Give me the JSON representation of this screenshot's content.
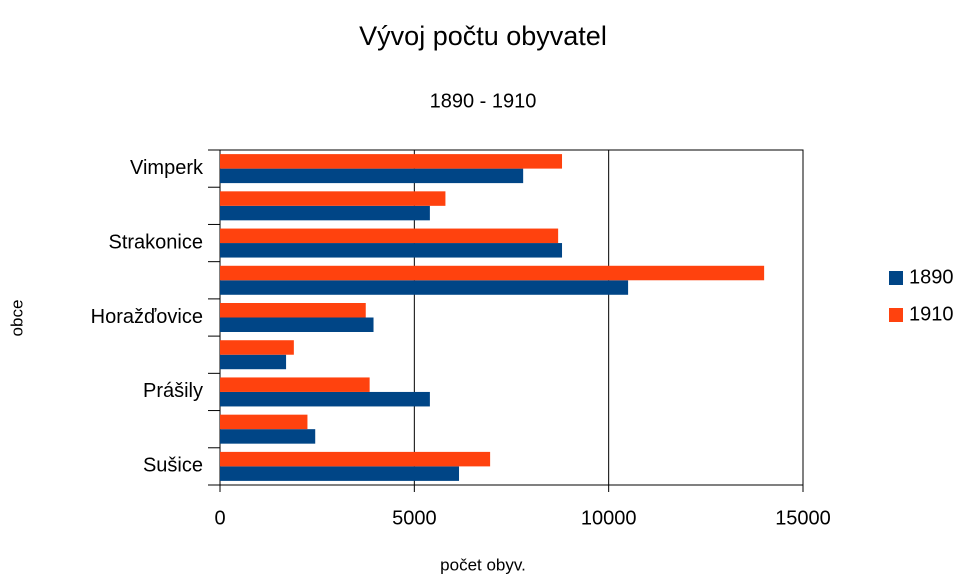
{
  "chart_data": {
    "type": "bar",
    "orientation": "horizontal",
    "title": "Vývoj počtu obyvatel",
    "subtitle": "1890 - 1910",
    "x_label": "počet obyv.",
    "y_label": "obce",
    "categories": [
      "Sušice",
      null,
      "Prášily",
      null,
      "Horažďovice",
      null,
      "Strakonice",
      null,
      "Vimperk"
    ],
    "series": [
      {
        "name": "1890",
        "color": "#004586",
        "values": [
          6150,
          2450,
          5400,
          1700,
          3950,
          10500,
          8800,
          5400,
          7800
        ]
      },
      {
        "name": "1910",
        "color": "#ff420e",
        "values": [
          6950,
          2250,
          3850,
          1900,
          3750,
          14000,
          8700,
          5800,
          8800
        ]
      }
    ],
    "xlim": [
      0,
      15000
    ],
    "xticks": [
      0,
      5000,
      10000,
      15000
    ],
    "grid": true,
    "legend": "right"
  }
}
